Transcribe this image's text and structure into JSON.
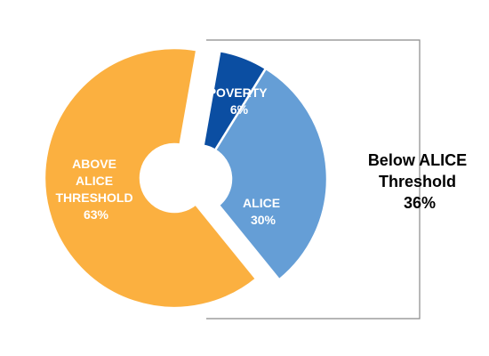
{
  "chart_data": {
    "type": "pie",
    "variant": "exploded donut",
    "slices": [
      {
        "key": "above",
        "label_lines": [
          "ABOVE",
          "ALICE",
          "THRESHOLD"
        ],
        "pct": "63%",
        "value": 63,
        "color": "#FBB040"
      },
      {
        "key": "poverty",
        "label_lines": [
          "POVERTY"
        ],
        "pct": "6%",
        "value": 6,
        "color": "#0B4EA2"
      },
      {
        "key": "alice",
        "label_lines": [
          "ALICE"
        ],
        "pct": "30%",
        "value": 30,
        "color": "#659ED6"
      }
    ],
    "bracket": {
      "lines": [
        "Below ALICE",
        "Threshold"
      ],
      "pct": "36%",
      "value": 36
    },
    "legend": "none"
  }
}
